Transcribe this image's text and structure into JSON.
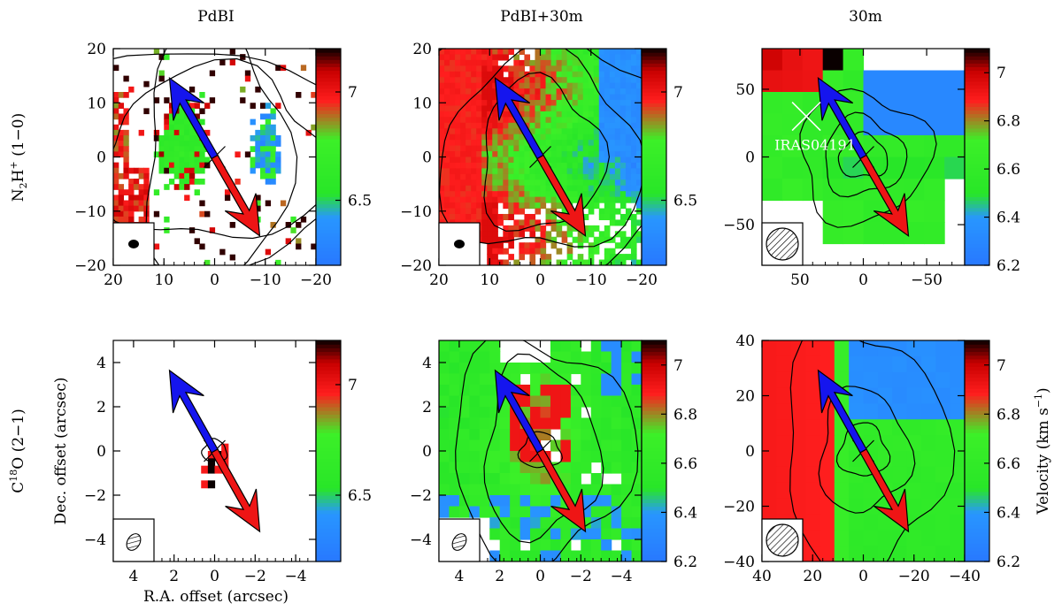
{
  "figure": {
    "column_titles": [
      "PdBI",
      "PdBI+30m",
      "30m"
    ],
    "row_labels": [
      {
        "base": "N",
        "sub": "2",
        "mid": "H",
        "sup": "+",
        "tail": " (1−0)"
      },
      {
        "base": "C",
        "sup": "18",
        "tail": "O (2−1)"
      }
    ],
    "xlabel": "R.A. offset (arcsec)",
    "ylabel": "Dec. offset (arcsec)",
    "colorbar_label": "Velocity (km s",
    "colorbar_label_sup": "−1",
    "colorbar_label_close": ")",
    "source_label": "IRAS04191",
    "colors": {
      "red": "#ff1a1a",
      "green": "#22ee22",
      "blue": "#2a7fff",
      "black": "#000000",
      "outflow_blue": "#1515ee",
      "outflow_red": "#ee1515"
    }
  },
  "chart_data": [
    {
      "type": "heatmap",
      "name": "N2H+ PdBI",
      "row": 0,
      "col": 0,
      "xlim": [
        20,
        -20
      ],
      "ylim": [
        -20,
        20
      ],
      "xticks": [
        20,
        10,
        0,
        -10,
        -20
      ],
      "yticks": [
        -20,
        -10,
        0,
        10,
        20
      ],
      "colorbar": {
        "range": [
          6.2,
          7.2
        ],
        "ticks": [
          6.5,
          7
        ]
      }
    },
    {
      "type": "heatmap",
      "name": "N2H+ PdBI+30m",
      "row": 0,
      "col": 1,
      "xlim": [
        20,
        -20
      ],
      "ylim": [
        -20,
        20
      ],
      "xticks": [
        20,
        10,
        0,
        -10,
        -20
      ],
      "yticks": [
        -20,
        -10,
        0,
        10,
        20
      ],
      "colorbar": {
        "range": [
          6.2,
          7.2
        ],
        "ticks": [
          6.5,
          7
        ]
      }
    },
    {
      "type": "heatmap",
      "name": "N2H+ 30m",
      "row": 0,
      "col": 2,
      "xlim": [
        80,
        -80
      ],
      "ylim": [
        -80,
        80
      ],
      "xticks": [
        50,
        0,
        -50
      ],
      "yticks": [
        -50,
        0,
        50
      ],
      "colorbar": {
        "range": [
          6.2,
          7.1
        ],
        "ticks": [
          6.2,
          6.4,
          6.6,
          6.8,
          7
        ]
      }
    },
    {
      "type": "heatmap",
      "name": "C18O PdBI",
      "row": 1,
      "col": 0,
      "xlim": [
        5,
        -5
      ],
      "ylim": [
        -5,
        5
      ],
      "xticks": [
        4,
        2,
        0,
        -2,
        -4
      ],
      "yticks": [
        -4,
        -2,
        0,
        2,
        4
      ],
      "colorbar": {
        "range": [
          6.2,
          7.2
        ],
        "ticks": [
          6.5,
          7
        ]
      }
    },
    {
      "type": "heatmap",
      "name": "C18O PdBI+30m",
      "row": 1,
      "col": 1,
      "xlim": [
        5,
        -5
      ],
      "ylim": [
        -5,
        5
      ],
      "xticks": [
        4,
        2,
        0,
        -2,
        -4
      ],
      "yticks": [
        -4,
        -2,
        0,
        2,
        4
      ],
      "colorbar": {
        "range": [
          6.2,
          7.1
        ],
        "ticks": [
          6.2,
          6.4,
          6.6,
          6.8,
          7
        ]
      }
    },
    {
      "type": "heatmap",
      "name": "C18O 30m",
      "row": 1,
      "col": 2,
      "xlim": [
        40,
        -40
      ],
      "ylim": [
        -40,
        40
      ],
      "xticks": [
        40,
        20,
        0,
        -20,
        -40
      ],
      "yticks": [
        -40,
        -20,
        0,
        20,
        40
      ],
      "colorbar": {
        "range": [
          6.2,
          7.1
        ],
        "ticks": [
          6.2,
          6.4,
          6.6,
          6.8,
          7
        ]
      }
    }
  ]
}
